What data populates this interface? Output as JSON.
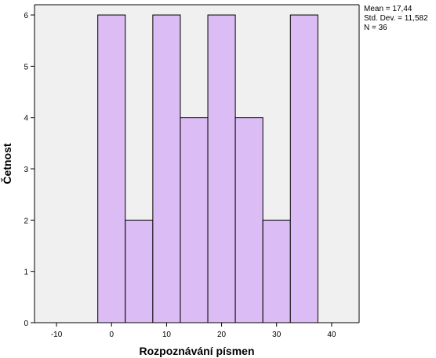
{
  "chart_data": {
    "type": "bar",
    "subtype": "histogram",
    "xlabel": "Rozpoznávání písmen",
    "ylabel": "Četnost",
    "xlim": [
      -14,
      45
    ],
    "ylim": [
      0,
      6.2
    ],
    "x_ticks": [
      -10,
      0,
      10,
      20,
      30,
      40
    ],
    "y_ticks": [
      0,
      1,
      2,
      3,
      4,
      5,
      6
    ],
    "x_tick_labels": [
      "-10",
      "0",
      "10",
      "20",
      "30",
      "40"
    ],
    "y_tick_labels": [
      "0",
      "1",
      "2",
      "3",
      "4",
      "5",
      "6"
    ],
    "bins": [
      {
        "start": -2.5,
        "end": 2.5,
        "count": 6
      },
      {
        "start": 2.5,
        "end": 7.5,
        "count": 2
      },
      {
        "start": 7.5,
        "end": 12.5,
        "count": 6
      },
      {
        "start": 12.5,
        "end": 17.5,
        "count": 4
      },
      {
        "start": 17.5,
        "end": 22.5,
        "count": 6
      },
      {
        "start": 22.5,
        "end": 27.5,
        "count": 4
      },
      {
        "start": 27.5,
        "end": 32.5,
        "count": 2
      },
      {
        "start": 32.5,
        "end": 37.5,
        "count": 6
      }
    ],
    "bar_color": "#dcbcf5",
    "bar_edge_color": "#000000",
    "plot_background": "#f0f0f0",
    "grid": false,
    "stats": {
      "mean": "Mean = 17,44",
      "std_dev": "Std. Dev. = 11,582",
      "n": "N = 36"
    }
  }
}
